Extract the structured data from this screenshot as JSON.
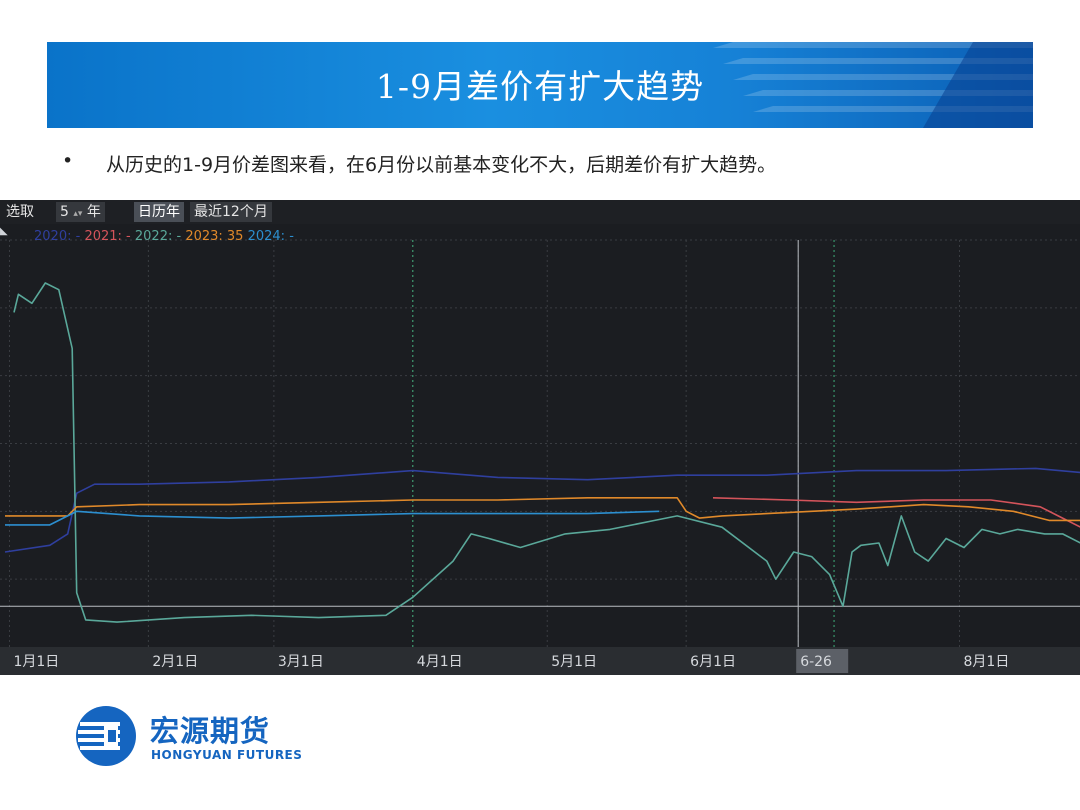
{
  "slide": {
    "title": "1-9月差价有扩大趋势",
    "bullet_symbol": "•",
    "bullet_text": "从历史的1-9月价差图来看，在6月份以前基本变化不大，后期差价有扩大趋势。"
  },
  "toolbar": {
    "select_label": "选取",
    "years_value": "5",
    "years_unit": "年",
    "calendar_year": "日历年",
    "last_12_months": "最近12个月"
  },
  "legend": [
    {
      "label": "2020: -",
      "color": "#2f3f9e"
    },
    {
      "label": "2021: -",
      "color": "#d4545b"
    },
    {
      "label": "2022: -",
      "color": "#5aa89a"
    },
    {
      "label": "2023: 35",
      "color": "#e0892a"
    },
    {
      "label": "2024: -",
      "color": "#2c8fd0"
    }
  ],
  "colors": {
    "background": "#1b1d21",
    "grid": "#3a3d42",
    "crosshair": "#b9bdc2",
    "marker": "#3fae7a"
  },
  "chart_data": {
    "type": "line",
    "x_ticks": [
      "1月1日",
      "2月1日",
      "3月1日",
      "4月1日",
      "5月1日",
      "6月1日",
      "6-26",
      "8月1日"
    ],
    "x_tick_days": [
      1,
      32,
      60,
      91,
      121,
      152,
      177,
      213
    ],
    "x_range_days": [
      0,
      241
    ],
    "crosshair_day": 177,
    "marker_days": [
      91,
      185
    ],
    "grid": true,
    "legend_position": "top-left",
    "series": [
      {
        "name": "2020",
        "color": "#2f3f9e",
        "points": [
          [
            0,
            -78
          ],
          [
            10,
            -75
          ],
          [
            14,
            -70
          ],
          [
            16,
            -52
          ],
          [
            20,
            -48
          ],
          [
            30,
            -48
          ],
          [
            50,
            -47
          ],
          [
            70,
            -45
          ],
          [
            91,
            -42
          ],
          [
            110,
            -45
          ],
          [
            130,
            -46
          ],
          [
            150,
            -44
          ],
          [
            170,
            -44
          ],
          [
            190,
            -42
          ],
          [
            210,
            -42
          ],
          [
            230,
            -41
          ],
          [
            241,
            -43
          ]
        ]
      },
      {
        "name": "2021",
        "color": "#d4545b",
        "points": [
          [
            158,
            -54
          ],
          [
            175,
            -55
          ],
          [
            190,
            -56
          ],
          [
            205,
            -55
          ],
          [
            220,
            -55
          ],
          [
            231,
            -58
          ],
          [
            236,
            -63
          ],
          [
            241,
            -68
          ]
        ]
      },
      {
        "name": "2022",
        "color": "#5aa89a",
        "points": [
          [
            2,
            28
          ],
          [
            3,
            36
          ],
          [
            6,
            32
          ],
          [
            9,
            41
          ],
          [
            12,
            38
          ],
          [
            15,
            12
          ],
          [
            16,
            -96
          ],
          [
            18,
            -108
          ],
          [
            25,
            -109
          ],
          [
            40,
            -107
          ],
          [
            55,
            -106
          ],
          [
            70,
            -107
          ],
          [
            85,
            -106
          ],
          [
            91,
            -98
          ],
          [
            100,
            -82
          ],
          [
            104,
            -70
          ],
          [
            108,
            -72
          ],
          [
            115,
            -76
          ],
          [
            125,
            -70
          ],
          [
            135,
            -68
          ],
          [
            145,
            -64
          ],
          [
            150,
            -62
          ],
          [
            160,
            -67
          ],
          [
            170,
            -82
          ],
          [
            172,
            -90
          ],
          [
            176,
            -78
          ],
          [
            180,
            -80
          ],
          [
            184,
            -88
          ],
          [
            187,
            -102
          ],
          [
            189,
            -78
          ],
          [
            191,
            -75
          ],
          [
            195,
            -74
          ],
          [
            197,
            -84
          ],
          [
            200,
            -62
          ],
          [
            203,
            -78
          ],
          [
            206,
            -82
          ],
          [
            210,
            -72
          ],
          [
            214,
            -76
          ],
          [
            218,
            -68
          ],
          [
            222,
            -70
          ],
          [
            226,
            -68
          ],
          [
            232,
            -70
          ],
          [
            236,
            -70
          ],
          [
            241,
            -75
          ]
        ]
      },
      {
        "name": "2023",
        "color": "#e0892a",
        "points": [
          [
            0,
            -62
          ],
          [
            14,
            -62
          ],
          [
            16,
            -58
          ],
          [
            30,
            -57
          ],
          [
            50,
            -57
          ],
          [
            70,
            -56
          ],
          [
            91,
            -55
          ],
          [
            110,
            -55
          ],
          [
            130,
            -54
          ],
          [
            150,
            -54
          ],
          [
            152,
            -60
          ],
          [
            155,
            -63
          ],
          [
            160,
            -62
          ],
          [
            170,
            -61
          ],
          [
            190,
            -59
          ],
          [
            205,
            -57
          ],
          [
            215,
            -58
          ],
          [
            225,
            -60
          ],
          [
            233,
            -64
          ],
          [
            241,
            -64
          ]
        ]
      },
      {
        "name": "2024",
        "color": "#2c8fd0",
        "points": [
          [
            0,
            -66
          ],
          [
            10,
            -66
          ],
          [
            14,
            -62
          ],
          [
            16,
            -60
          ],
          [
            30,
            -62
          ],
          [
            50,
            -63
          ],
          [
            70,
            -62
          ],
          [
            91,
            -61
          ],
          [
            110,
            -61
          ],
          [
            130,
            -61
          ],
          [
            146,
            -60
          ]
        ]
      }
    ]
  },
  "brand": {
    "cn": "宏源期货",
    "en": "HONGYUAN FUTURES"
  }
}
